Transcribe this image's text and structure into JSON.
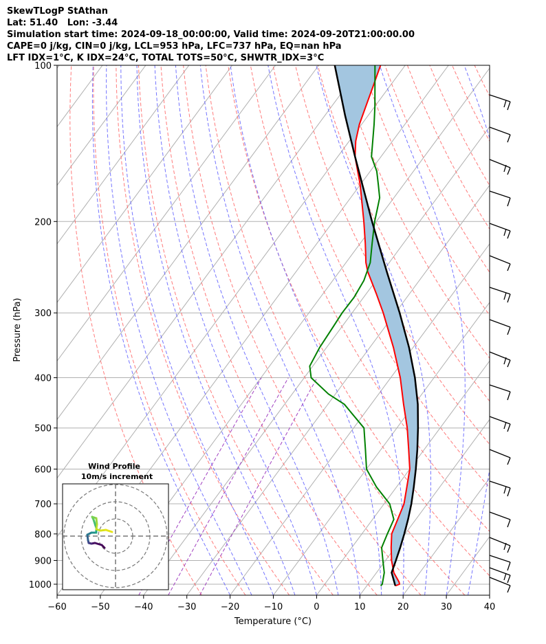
{
  "header": {
    "line1": "SkewTLogP StAthan",
    "line2": "Lat: 51.40   Lon: -3.44",
    "line3": "Simulation start time: 2024-09-18_00:00:00, Valid time: 2024-09-20T21:00:00.00",
    "line4": "CAPE=0 j/kg, CIN=0 j/kg, LCL=953 hPa, LFC=737 hPa, EQ=nan hPa",
    "line5": "LFT IDX=1°C, K IDX=24°C, TOTAL TOTS=50°C, SHWTR_IDX=3°C"
  },
  "chart_data": {
    "type": "line",
    "title": "SkewTLogP StAthan",
    "xlabel": "Temperature (°C)",
    "ylabel": "Pressure (hPa)",
    "xlim": [
      -60,
      40
    ],
    "ylim": [
      1050,
      100
    ],
    "y_scale": "log",
    "grid": true,
    "x_ticks": [
      "−60",
      "−50",
      "−40",
      "−30",
      "−20",
      "−10",
      "0",
      "10",
      "20",
      "30",
      "40"
    ],
    "y_ticks": [
      {
        "p": 100,
        "label": "100"
      },
      {
        "p": 200,
        "label": "200"
      },
      {
        "p": 300,
        "label": "300"
      },
      {
        "p": 400,
        "label": "400"
      },
      {
        "p": 500,
        "label": "500"
      },
      {
        "p": 600,
        "label": "600"
      },
      {
        "p": 700,
        "label": "700"
      },
      {
        "p": 800,
        "label": "800"
      },
      {
        "p": 900,
        "label": "900"
      },
      {
        "p": 1000,
        "label": "1000"
      }
    ],
    "colors": {
      "temperature": "#ff0000",
      "dewpoint": "#008000",
      "parcel": "#000000",
      "fill": "#a3c6e0",
      "dry_adiabats": "#ff6b6b",
      "moist_adiabats": "#5c5cff",
      "mixing_ratio": "#a040c0",
      "isotherms": "#b0b0b0"
    },
    "series": [
      {
        "key": "temperature",
        "points": [
          [
            1007,
            16.6
          ],
          [
            1000,
            17.3
          ],
          [
            990,
            16.8
          ],
          [
            950,
            14.0
          ],
          [
            900,
            11.4
          ],
          [
            850,
            9.1
          ],
          [
            800,
            6.9
          ],
          [
            750,
            5.8
          ],
          [
            700,
            4.6
          ],
          [
            650,
            2.4
          ],
          [
            600,
            0.0
          ],
          [
            550,
            -3.6
          ],
          [
            500,
            -7.6
          ],
          [
            450,
            -12.5
          ],
          [
            400,
            -17.8
          ],
          [
            350,
            -24.5
          ],
          [
            300,
            -32.8
          ],
          [
            275,
            -37.8
          ],
          [
            260,
            -41.1
          ],
          [
            250,
            -43.4
          ],
          [
            240,
            -45.4
          ],
          [
            230,
            -47.1
          ],
          [
            220,
            -48.9
          ],
          [
            200,
            -52.9
          ],
          [
            170,
            -60.0
          ],
          [
            150,
            -66.0
          ],
          [
            140,
            -68.5
          ],
          [
            130,
            -70.5
          ],
          [
            120,
            -72.1
          ],
          [
            110,
            -73.8
          ],
          [
            100,
            -75.7
          ]
        ]
      },
      {
        "key": "dewpoint",
        "points": [
          [
            1007,
            13.2
          ],
          [
            1000,
            13.3
          ],
          [
            950,
            11.8
          ],
          [
            900,
            9.4
          ],
          [
            850,
            6.9
          ],
          [
            800,
            5.9
          ],
          [
            750,
            4.9
          ],
          [
            700,
            1.3
          ],
          [
            650,
            -4.6
          ],
          [
            600,
            -10.0
          ],
          [
            550,
            -13.6
          ],
          [
            500,
            -17.6
          ],
          [
            450,
            -26.2
          ],
          [
            430,
            -31.6
          ],
          [
            400,
            -38.4
          ],
          [
            380,
            -40.7
          ],
          [
            350,
            -41.6
          ],
          [
            320,
            -42.0
          ],
          [
            300,
            -42.3
          ],
          [
            280,
            -42.2
          ],
          [
            260,
            -42.8
          ],
          [
            240,
            -44.4
          ],
          [
            220,
            -47.3
          ],
          [
            200,
            -50.4
          ],
          [
            190,
            -51.8
          ],
          [
            180,
            -53.3
          ],
          [
            170,
            -55.8
          ],
          [
            160,
            -58.5
          ],
          [
            150,
            -62.2
          ],
          [
            130,
            -67.1
          ],
          [
            120,
            -70.0
          ],
          [
            100,
            -77.0
          ]
        ]
      },
      {
        "key": "parcel",
        "points": [
          [
            1007,
            16.6
          ],
          [
            950,
            13.5
          ],
          [
            900,
            12.4
          ],
          [
            850,
            11.2
          ],
          [
            800,
            9.8
          ],
          [
            750,
            8.2
          ],
          [
            700,
            6.3
          ],
          [
            650,
            4.0
          ],
          [
            600,
            1.4
          ],
          [
            550,
            -1.6
          ],
          [
            500,
            -5.1
          ],
          [
            450,
            -9.2
          ],
          [
            400,
            -14.4
          ],
          [
            350,
            -20.9
          ],
          [
            300,
            -29.0
          ],
          [
            250,
            -39.0
          ],
          [
            200,
            -51.0
          ],
          [
            150,
            -66.0
          ],
          [
            125,
            -75.3
          ],
          [
            100,
            -86.3
          ]
        ]
      }
    ],
    "inset": {
      "title": "Wind Profile",
      "subtitle": "10m/s increment"
    }
  }
}
